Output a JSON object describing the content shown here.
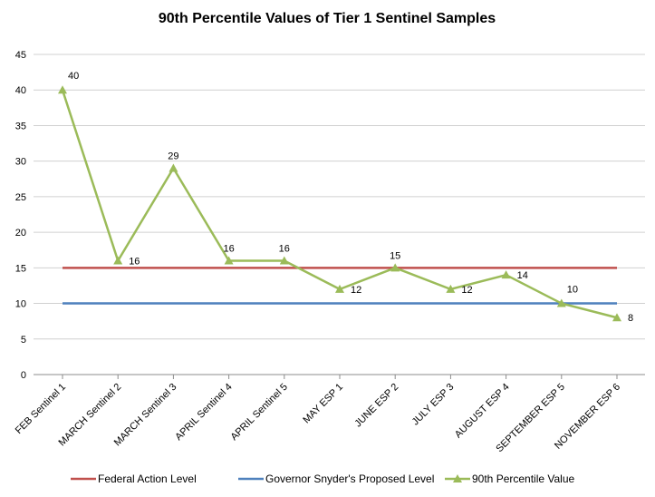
{
  "chart_data": {
    "type": "line",
    "title": "90th Percentile Values of Tier 1 Sentinel Samples",
    "xlabel": "",
    "ylabel": "",
    "ylim": [
      0,
      45
    ],
    "yticks": [
      0,
      5,
      10,
      15,
      20,
      25,
      30,
      35,
      40,
      45
    ],
    "grid": true,
    "legend_position": "bottom",
    "categories": [
      "FEB Sentinel 1",
      "MARCH Sentinel 2",
      "MARCH Sentinel 3",
      "APRIL Sentinel 4",
      "APRIL Sentinel 5",
      "MAY ESP 1",
      "JUNE ESP 2",
      "JULY ESP 3",
      "AUGUST ESP 4",
      "SEPTEMBER ESP 5",
      "NOVEMBER ESP 6"
    ],
    "series": [
      {
        "name": "Federal Action Level",
        "color": "#c0504d",
        "values": [
          15,
          15,
          15,
          15,
          15,
          15,
          15,
          15,
          15,
          15,
          15
        ],
        "marker": "none",
        "labels": false
      },
      {
        "name": "Governor Snyder's Proposed Level",
        "color": "#4f81bd",
        "values": [
          10,
          10,
          10,
          10,
          10,
          10,
          10,
          10,
          10,
          10,
          10
        ],
        "marker": "none",
        "labels": false
      },
      {
        "name": "90th Percentile Value",
        "color": "#9bbb59",
        "values": [
          40,
          16,
          29,
          16,
          16,
          12,
          15,
          12,
          14,
          10,
          8
        ],
        "marker": "triangle",
        "labels": true
      }
    ],
    "data_label_positions": [
      "above-right",
      "right",
      "above",
      "above",
      "above",
      "right",
      "above",
      "right",
      "right",
      "above-right",
      "right"
    ]
  }
}
